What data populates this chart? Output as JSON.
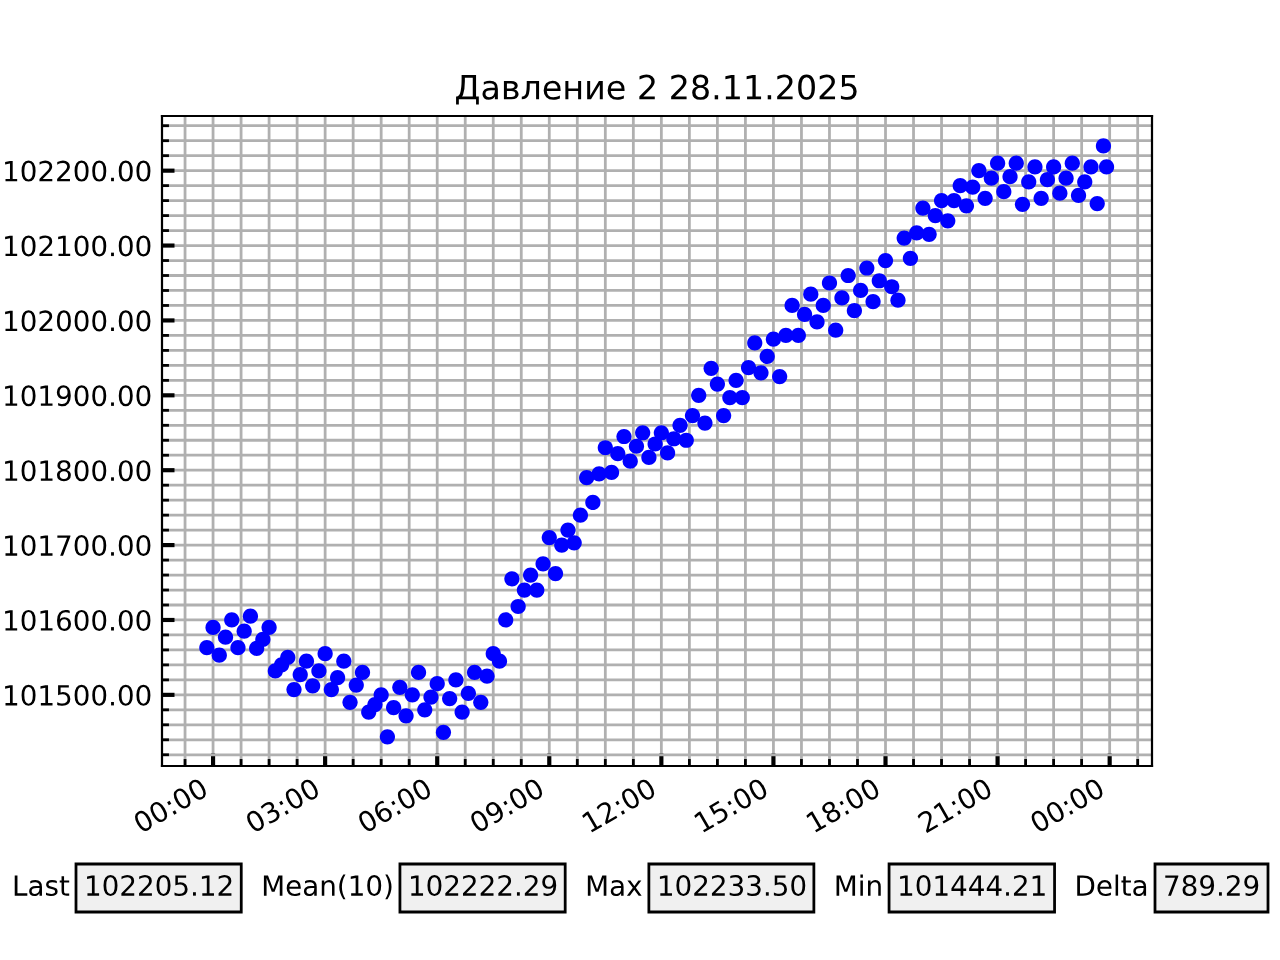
{
  "chart_data": {
    "type": "scatter",
    "title": "Давление 2 28.11.2025",
    "marker": "circle",
    "grid": true,
    "xlim": [
      "2025-11-27T22:38",
      "2025-11-29T01:08"
    ],
    "ylim": [
      101405,
      102273
    ],
    "xticks": [
      {
        "value": "2025-11-27T23:15",
        "label": null
      },
      {
        "value": "2025-11-28T00:00",
        "label": "00:00"
      },
      {
        "value": "2025-11-28T00:45",
        "label": null
      },
      {
        "value": "2025-11-28T01:30",
        "label": null
      },
      {
        "value": "2025-11-28T02:15",
        "label": null
      },
      {
        "value": "2025-11-28T03:00",
        "label": "03:00"
      },
      {
        "value": "2025-11-28T03:45",
        "label": null
      },
      {
        "value": "2025-11-28T04:30",
        "label": null
      },
      {
        "value": "2025-11-28T05:15",
        "label": null
      },
      {
        "value": "2025-11-28T06:00",
        "label": "06:00"
      },
      {
        "value": "2025-11-28T06:45",
        "label": null
      },
      {
        "value": "2025-11-28T07:30",
        "label": null
      },
      {
        "value": "2025-11-28T08:15",
        "label": null
      },
      {
        "value": "2025-11-28T09:00",
        "label": "09:00"
      },
      {
        "value": "2025-11-28T09:45",
        "label": null
      },
      {
        "value": "2025-11-28T10:30",
        "label": null
      },
      {
        "value": "2025-11-28T11:15",
        "label": null
      },
      {
        "value": "2025-11-28T12:00",
        "label": "12:00"
      },
      {
        "value": "2025-11-28T12:45",
        "label": null
      },
      {
        "value": "2025-11-28T13:30",
        "label": null
      },
      {
        "value": "2025-11-28T14:15",
        "label": null
      },
      {
        "value": "2025-11-28T15:00",
        "label": "15:00"
      },
      {
        "value": "2025-11-28T15:45",
        "label": null
      },
      {
        "value": "2025-11-28T16:30",
        "label": null
      },
      {
        "value": "2025-11-28T17:15",
        "label": null
      },
      {
        "value": "2025-11-28T18:00",
        "label": "18:00"
      },
      {
        "value": "2025-11-28T18:45",
        "label": null
      },
      {
        "value": "2025-11-28T19:30",
        "label": null
      },
      {
        "value": "2025-11-28T20:15",
        "label": null
      },
      {
        "value": "2025-11-28T21:00",
        "label": "21:00"
      },
      {
        "value": "2025-11-28T21:45",
        "label": null
      },
      {
        "value": "2025-11-28T22:30",
        "label": null
      },
      {
        "value": "2025-11-28T23:15",
        "label": null
      },
      {
        "value": "2025-11-29T00:00",
        "label": "00:00"
      },
      {
        "value": "2025-11-29T00:45",
        "label": null
      }
    ],
    "yticks": [
      {
        "value": 101420,
        "label": null
      },
      {
        "value": 101440,
        "label": null
      },
      {
        "value": 101460,
        "label": null
      },
      {
        "value": 101480,
        "label": null
      },
      {
        "value": 101500,
        "label": "101500.00"
      },
      {
        "value": 101520,
        "label": null
      },
      {
        "value": 101540,
        "label": null
      },
      {
        "value": 101560,
        "label": null
      },
      {
        "value": 101580,
        "label": null
      },
      {
        "value": 101600,
        "label": "101600.00"
      },
      {
        "value": 101620,
        "label": null
      },
      {
        "value": 101640,
        "label": null
      },
      {
        "value": 101660,
        "label": null
      },
      {
        "value": 101680,
        "label": null
      },
      {
        "value": 101700,
        "label": "101700.00"
      },
      {
        "value": 101720,
        "label": null
      },
      {
        "value": 101740,
        "label": null
      },
      {
        "value": 101760,
        "label": null
      },
      {
        "value": 101780,
        "label": null
      },
      {
        "value": 101800,
        "label": "101800.00"
      },
      {
        "value": 101820,
        "label": null
      },
      {
        "value": 101840,
        "label": null
      },
      {
        "value": 101860,
        "label": null
      },
      {
        "value": 101880,
        "label": null
      },
      {
        "value": 101900,
        "label": "101900.00"
      },
      {
        "value": 101920,
        "label": null
      },
      {
        "value": 101940,
        "label": null
      },
      {
        "value": 101960,
        "label": null
      },
      {
        "value": 101980,
        "label": null
      },
      {
        "value": 102000,
        "label": "102000.00"
      },
      {
        "value": 102020,
        "label": null
      },
      {
        "value": 102040,
        "label": null
      },
      {
        "value": 102060,
        "label": null
      },
      {
        "value": 102080,
        "label": null
      },
      {
        "value": 102100,
        "label": "102100.00"
      },
      {
        "value": 102120,
        "label": null
      },
      {
        "value": 102140,
        "label": null
      },
      {
        "value": 102160,
        "label": null
      },
      {
        "value": 102180,
        "label": null
      },
      {
        "value": 102200,
        "label": "102200.00"
      },
      {
        "value": 102220,
        "label": null
      },
      {
        "value": 102240,
        "label": null
      },
      {
        "value": 102260,
        "label": null
      }
    ],
    "series": [
      {
        "color": "#0000ff",
        "x": [
          "2025-11-27T23:50",
          "2025-11-28T00:00",
          "2025-11-28T00:10",
          "2025-11-28T00:20",
          "2025-11-28T00:30",
          "2025-11-28T00:40",
          "2025-11-28T00:50",
          "2025-11-28T01:00",
          "2025-11-28T01:10",
          "2025-11-28T01:20",
          "2025-11-28T01:30",
          "2025-11-28T01:40",
          "2025-11-28T01:50",
          "2025-11-28T02:00",
          "2025-11-28T02:10",
          "2025-11-28T02:20",
          "2025-11-28T02:30",
          "2025-11-28T02:40",
          "2025-11-28T02:50",
          "2025-11-28T03:00",
          "2025-11-28T03:10",
          "2025-11-28T03:20",
          "2025-11-28T03:30",
          "2025-11-28T03:40",
          "2025-11-28T03:50",
          "2025-11-28T04:00",
          "2025-11-28T04:10",
          "2025-11-28T04:20",
          "2025-11-28T04:30",
          "2025-11-28T04:40",
          "2025-11-28T04:50",
          "2025-11-28T05:00",
          "2025-11-28T05:10",
          "2025-11-28T05:20",
          "2025-11-28T05:30",
          "2025-11-28T05:40",
          "2025-11-28T05:50",
          "2025-11-28T06:00",
          "2025-11-28T06:10",
          "2025-11-28T06:20",
          "2025-11-28T06:30",
          "2025-11-28T06:40",
          "2025-11-28T06:50",
          "2025-11-28T07:00",
          "2025-11-28T07:10",
          "2025-11-28T07:20",
          "2025-11-28T07:30",
          "2025-11-28T07:40",
          "2025-11-28T07:50",
          "2025-11-28T08:00",
          "2025-11-28T08:10",
          "2025-11-28T08:20",
          "2025-11-28T08:30",
          "2025-11-28T08:40",
          "2025-11-28T08:50",
          "2025-11-28T09:00",
          "2025-11-28T09:10",
          "2025-11-28T09:20",
          "2025-11-28T09:30",
          "2025-11-28T09:40",
          "2025-11-28T09:50",
          "2025-11-28T10:00",
          "2025-11-28T10:10",
          "2025-11-28T10:20",
          "2025-11-28T10:30",
          "2025-11-28T10:40",
          "2025-11-28T10:50",
          "2025-11-28T11:00",
          "2025-11-28T11:10",
          "2025-11-28T11:20",
          "2025-11-28T11:30",
          "2025-11-28T11:40",
          "2025-11-28T11:50",
          "2025-11-28T12:00",
          "2025-11-28T12:10",
          "2025-11-28T12:20",
          "2025-11-28T12:30",
          "2025-11-28T12:40",
          "2025-11-28T12:50",
          "2025-11-28T13:00",
          "2025-11-28T13:10",
          "2025-11-28T13:20",
          "2025-11-28T13:30",
          "2025-11-28T13:40",
          "2025-11-28T13:50",
          "2025-11-28T14:00",
          "2025-11-28T14:10",
          "2025-11-28T14:20",
          "2025-11-28T14:30",
          "2025-11-28T14:40",
          "2025-11-28T14:50",
          "2025-11-28T15:00",
          "2025-11-28T15:10",
          "2025-11-28T15:20",
          "2025-11-28T15:30",
          "2025-11-28T15:40",
          "2025-11-28T15:50",
          "2025-11-28T16:00",
          "2025-11-28T16:10",
          "2025-11-28T16:20",
          "2025-11-28T16:30",
          "2025-11-28T16:40",
          "2025-11-28T16:50",
          "2025-11-28T17:00",
          "2025-11-28T17:10",
          "2025-11-28T17:20",
          "2025-11-28T17:30",
          "2025-11-28T17:40",
          "2025-11-28T17:50",
          "2025-11-28T18:00",
          "2025-11-28T18:10",
          "2025-11-28T18:20",
          "2025-11-28T18:30",
          "2025-11-28T18:40",
          "2025-11-28T18:50",
          "2025-11-28T19:00",
          "2025-11-28T19:10",
          "2025-11-28T19:20",
          "2025-11-28T19:30",
          "2025-11-28T19:40",
          "2025-11-28T19:50",
          "2025-11-28T20:00",
          "2025-11-28T20:10",
          "2025-11-28T20:20",
          "2025-11-28T20:30",
          "2025-11-28T20:40",
          "2025-11-28T20:50",
          "2025-11-28T21:00",
          "2025-11-28T21:10",
          "2025-11-28T21:20",
          "2025-11-28T21:30",
          "2025-11-28T21:40",
          "2025-11-28T21:50",
          "2025-11-28T22:00",
          "2025-11-28T22:10",
          "2025-11-28T22:20",
          "2025-11-28T22:30",
          "2025-11-28T22:40",
          "2025-11-28T22:50",
          "2025-11-28T23:00",
          "2025-11-28T23:10",
          "2025-11-28T23:20",
          "2025-11-28T23:30",
          "2025-11-28T23:40",
          "2025-11-28T23:50",
          "2025-11-28T23:55"
        ],
        "values": [
          101563,
          101590,
          101553,
          101577,
          101600,
          101563,
          101585,
          101605,
          101562,
          101574,
          101590,
          101532,
          101540,
          101550,
          101507,
          101527,
          101545,
          101512,
          101532,
          101555,
          101507,
          101523,
          101545,
          101490,
          101513,
          101530,
          101477,
          101487,
          101500,
          101444,
          101483,
          101510,
          101472,
          101500,
          101530,
          101480,
          101497,
          101515,
          101450,
          101495,
          101520,
          101477,
          101502,
          101530,
          101490,
          101525,
          101555,
          101545,
          101600,
          101655,
          101618,
          101640,
          101660,
          101640,
          101675,
          101710,
          101662,
          101700,
          101720,
          101703,
          101740,
          101790,
          101757,
          101795,
          101830,
          101797,
          101822,
          101845,
          101812,
          101832,
          101850,
          101817,
          101835,
          101850,
          101823,
          101842,
          101860,
          101840,
          101873,
          101900,
          101863,
          101936,
          101915,
          101873,
          101897,
          101920,
          101897,
          101937,
          101970,
          101930,
          101952,
          101975,
          101925,
          101980,
          102020,
          101980,
          102008,
          102035,
          101998,
          102020,
          102050,
          101987,
          102030,
          102060,
          102013,
          102040,
          102070,
          102025,
          102053,
          102080,
          102045,
          102027,
          102110,
          102083,
          102117,
          102150,
          102115,
          102140,
          102160,
          102133,
          102160,
          102180,
          102153,
          102178,
          102200,
          102163,
          102190,
          102210,
          102172,
          102192,
          102210,
          102155,
          102185,
          102205,
          102163,
          102188,
          102205,
          102170,
          102190,
          102210,
          102167,
          102185,
          102205,
          102156,
          102233,
          102205
        ]
      }
    ],
    "annotations": [
      "Last",
      "102205.12",
      "Mean(10)",
      "102222.29",
      "Max",
      "102233.50",
      "Min",
      "101444.21",
      "Delta",
      "789.29"
    ]
  }
}
